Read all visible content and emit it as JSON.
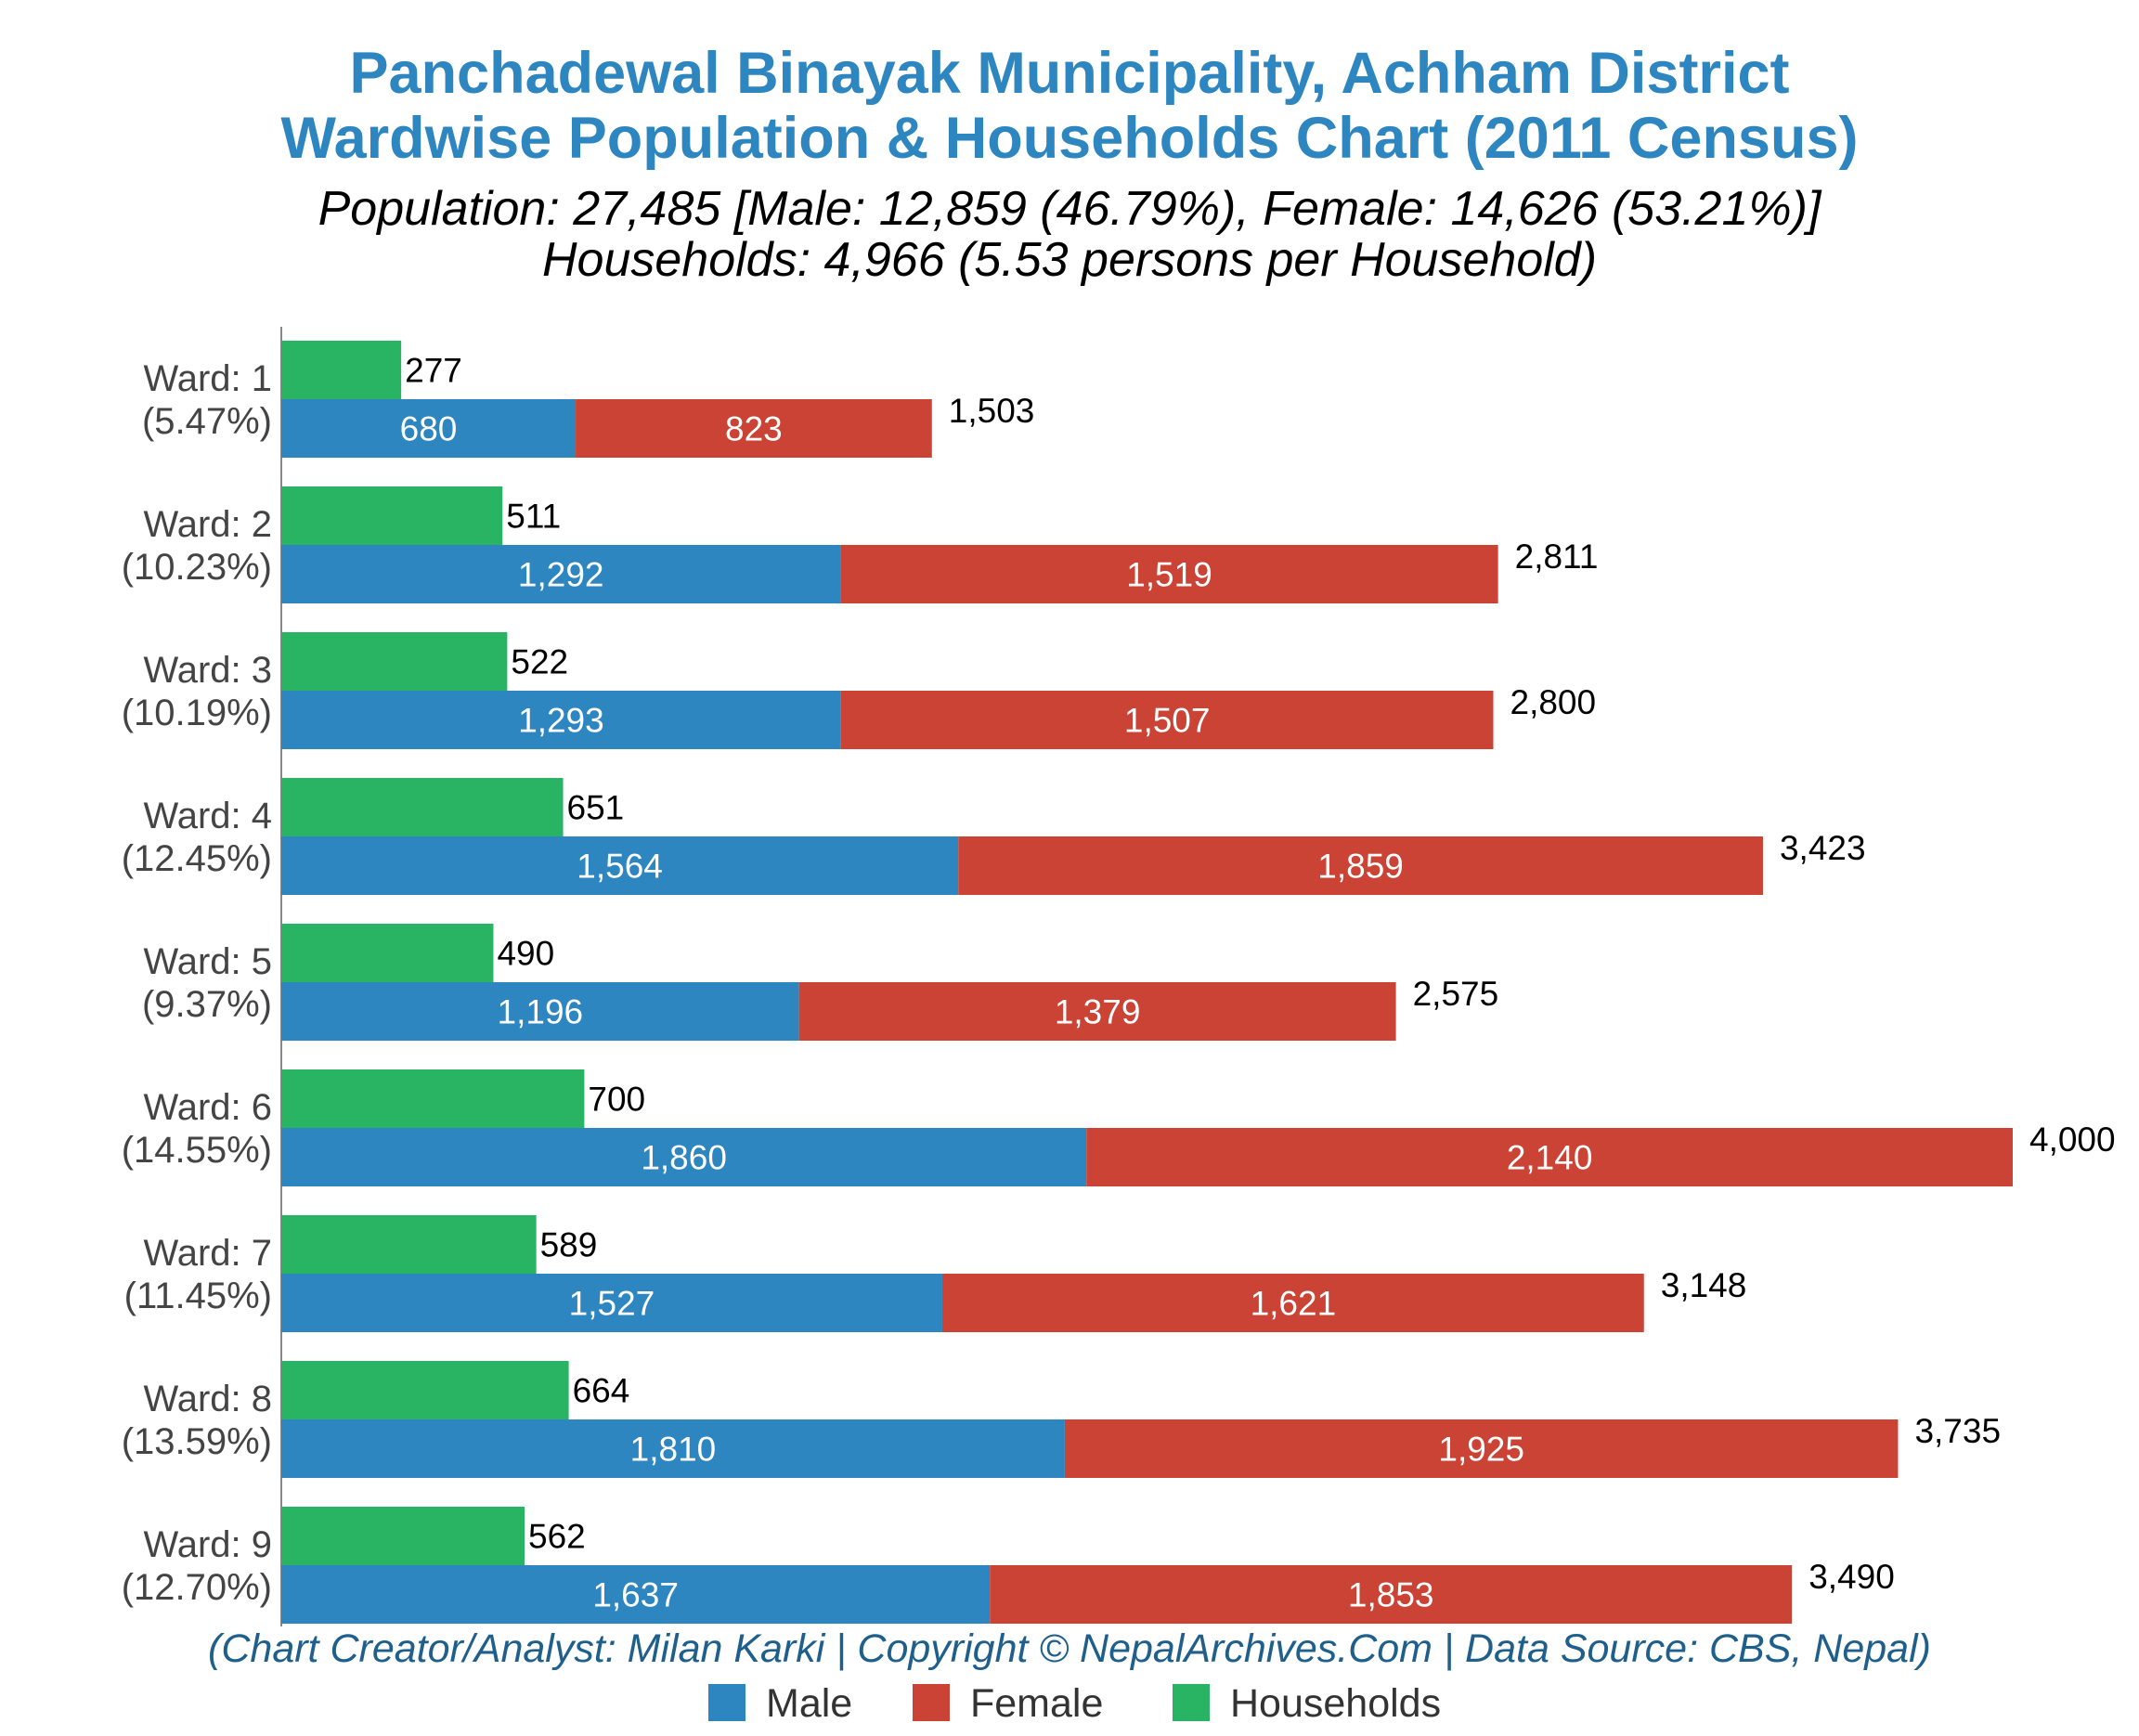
{
  "title_line1": "Panchadewal Binayak Municipality, Achham District",
  "title_line2": "Wardwise Population & Households Chart (2011 Census)",
  "subtitle_line1": "Population: 27,485 [Male: 12,859 (46.79%), Female: 14,626 (53.21%)]",
  "subtitle_line2": "Households: 4,966 (5.53 persons per Household)",
  "credit": "(Chart Creator/Analyst: Milan Karki | Copyright © NepalArchives.Com | Data Source: CBS, Nepal)",
  "colors": {
    "male": "#2e86c1",
    "female": "#cb4335",
    "households": "#28b463",
    "title": "#2e86c1",
    "credit": "#1f5f8b"
  },
  "chart_data": {
    "type": "bar",
    "orientation": "horizontal",
    "stacked_series": [
      "Male",
      "Female"
    ],
    "categories": [
      {
        "ward": "Ward: 1",
        "share": "(5.47%)"
      },
      {
        "ward": "Ward: 2",
        "share": "(10.23%)"
      },
      {
        "ward": "Ward: 3",
        "share": "(10.19%)"
      },
      {
        "ward": "Ward: 4",
        "share": "(12.45%)"
      },
      {
        "ward": "Ward: 5",
        "share": "(9.37%)"
      },
      {
        "ward": "Ward: 6",
        "share": "(14.55%)"
      },
      {
        "ward": "Ward: 7",
        "share": "(11.45%)"
      },
      {
        "ward": "Ward: 8",
        "share": "(13.59%)"
      },
      {
        "ward": "Ward: 9",
        "share": "(12.70%)"
      }
    ],
    "series": [
      {
        "name": "Male",
        "values": [
          680,
          1292,
          1293,
          1564,
          1196,
          1860,
          1527,
          1810,
          1637
        ],
        "labels": [
          "680",
          "1,292",
          "1,293",
          "1,564",
          "1,196",
          "1,860",
          "1,527",
          "1,810",
          "1,637"
        ]
      },
      {
        "name": "Female",
        "values": [
          823,
          1519,
          1507,
          1859,
          1379,
          2140,
          1621,
          1925,
          1853
        ],
        "labels": [
          "823",
          "1,519",
          "1,507",
          "1,859",
          "1,379",
          "2,140",
          "1,621",
          "1,925",
          "1,853"
        ]
      },
      {
        "name": "Households",
        "values": [
          277,
          511,
          522,
          651,
          490,
          700,
          589,
          664,
          562
        ],
        "labels": [
          "277",
          "511",
          "522",
          "651",
          "490",
          "700",
          "589",
          "664",
          "562"
        ]
      }
    ],
    "totals": [
      1503,
      2811,
      2800,
      3423,
      2575,
      4000,
      3148,
      3735,
      3490
    ],
    "total_labels": [
      "1,503",
      "2,811",
      "2,800",
      "3,423",
      "2,575",
      "4,000",
      "3,148",
      "3,735",
      "3,490"
    ],
    "xlim": [
      0,
      4000
    ],
    "grid": false,
    "legend": {
      "position": "bottom",
      "entries": [
        "Male",
        "Female",
        "Households"
      ]
    }
  }
}
